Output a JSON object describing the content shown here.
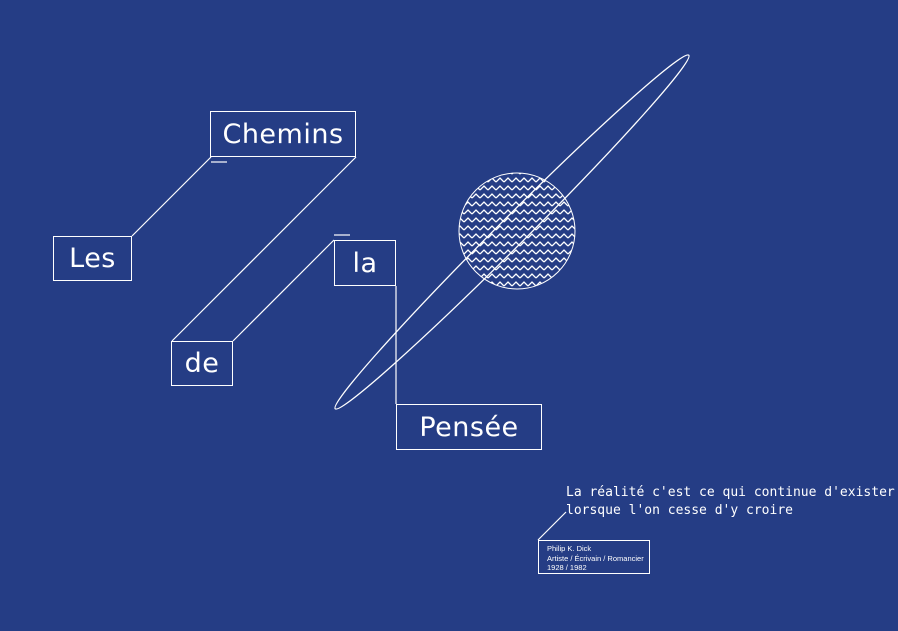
{
  "title_words": {
    "les": "Les",
    "chemins": "Chemins",
    "de": "de",
    "la": "la",
    "pensee": "Pensée"
  },
  "quote": {
    "line1": "La réalité c'est ce qui continue d'exister",
    "line2": "lorsque l'on cesse d'y croire"
  },
  "attribution": {
    "name": "Philip K. Dick",
    "roles": "Artiste / Écrivain / Romancier",
    "years": "1928 / 1982"
  },
  "colors": {
    "background": "#253d85",
    "line": "#ffffff"
  }
}
